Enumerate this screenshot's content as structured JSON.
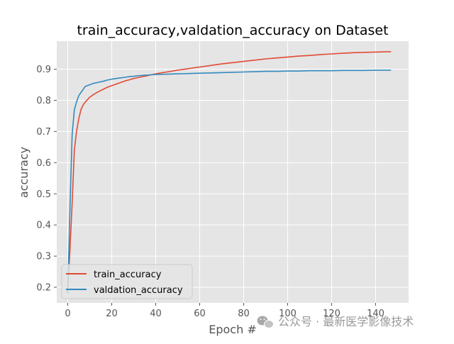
{
  "chart_data": {
    "type": "line",
    "title": "train_accuracy,valdation_accuracy on Dataset",
    "xlabel": "Epoch #",
    "ylabel": "accuracy",
    "xlim": [
      -5,
      155
    ],
    "ylim": [
      0.15,
      0.99
    ],
    "xticks": [
      0,
      20,
      40,
      60,
      80,
      100,
      120,
      140
    ],
    "yticks": [
      0.2,
      0.3,
      0.4,
      0.5,
      0.6,
      0.7,
      0.8,
      0.9
    ],
    "grid": true,
    "legend_position": "lower-left",
    "series": [
      {
        "name": "train_accuracy",
        "color": "#E24A33",
        "x": [
          0,
          1,
          2,
          3,
          4,
          5,
          6,
          7,
          8,
          10,
          12,
          14,
          16,
          18,
          20,
          22,
          24,
          26,
          28,
          30,
          32,
          34,
          36,
          38,
          40,
          45,
          50,
          55,
          60,
          65,
          70,
          75,
          80,
          85,
          90,
          95,
          100,
          105,
          110,
          115,
          120,
          125,
          130,
          135,
          140,
          145,
          147
        ],
        "values": [
          0.19,
          0.32,
          0.47,
          0.64,
          0.7,
          0.74,
          0.77,
          0.785,
          0.795,
          0.81,
          0.82,
          0.828,
          0.835,
          0.842,
          0.847,
          0.852,
          0.857,
          0.862,
          0.866,
          0.87,
          0.873,
          0.876,
          0.879,
          0.882,
          0.885,
          0.891,
          0.897,
          0.902,
          0.907,
          0.912,
          0.917,
          0.921,
          0.925,
          0.929,
          0.933,
          0.936,
          0.939,
          0.942,
          0.944,
          0.947,
          0.949,
          0.951,
          0.953,
          0.954,
          0.955,
          0.956,
          0.956
        ]
      },
      {
        "name": "valdation_accuracy",
        "color": "#348ABD",
        "x": [
          0,
          1,
          2,
          3,
          4,
          5,
          6,
          7,
          8,
          10,
          12,
          14,
          16,
          18,
          20,
          22,
          24,
          26,
          28,
          30,
          32,
          34,
          36,
          38,
          40,
          45,
          50,
          55,
          60,
          65,
          70,
          75,
          80,
          85,
          90,
          95,
          100,
          105,
          110,
          115,
          120,
          125,
          130,
          135,
          140,
          145,
          147
        ],
        "values": [
          0.18,
          0.45,
          0.69,
          0.77,
          0.795,
          0.815,
          0.825,
          0.835,
          0.845,
          0.85,
          0.855,
          0.858,
          0.861,
          0.865,
          0.868,
          0.87,
          0.872,
          0.874,
          0.876,
          0.877,
          0.879,
          0.88,
          0.881,
          0.882,
          0.883,
          0.884,
          0.885,
          0.886,
          0.887,
          0.888,
          0.889,
          0.89,
          0.891,
          0.892,
          0.893,
          0.893,
          0.894,
          0.894,
          0.895,
          0.895,
          0.895,
          0.896,
          0.896,
          0.896,
          0.897,
          0.897,
          0.897
        ]
      }
    ]
  },
  "watermark": {
    "icon": "wechat-icon",
    "text": "公众号 · 最新医学影像技术"
  }
}
